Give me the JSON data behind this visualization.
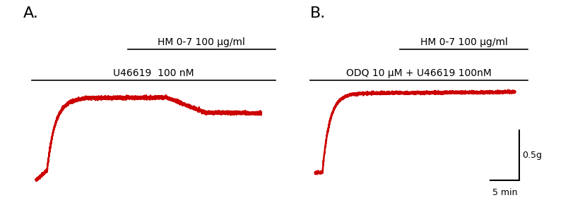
{
  "bg_color": "#ffffff",
  "trace_color": "#cc0000",
  "trace_lw": 1.8,
  "noise_std": 0.012,
  "panel_A": {
    "label": "A.",
    "hm_label": "HM 0-7 100 μg/ml",
    "u_label": "U46619  100 nM"
  },
  "panel_B": {
    "label": "B.",
    "hm_label": "HM 0-7 100 μg/ml",
    "u_label": "ODQ 10 μM + U46619 100nM",
    "scalebar_g": "0.5g",
    "scalebar_min": "5 min"
  },
  "font_size_panel_label": 16,
  "font_size_annot": 10
}
